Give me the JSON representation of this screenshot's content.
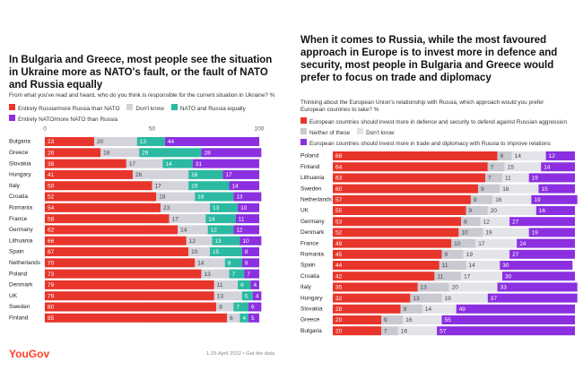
{
  "chart_data": [
    {
      "type": "bar",
      "orientation": "horizontal",
      "stacked": true,
      "title": "In Bulgaria and Greece, most people see the situation in Ukraine more as NATO's fault, or the fault of NATO and Russia equally",
      "subtitle": "From what you've read and heard, who do you think is responsible for the current situation in Ukraine? %",
      "categories": [
        "Bulgaria",
        "Greece",
        "Slovakia",
        "Hungary",
        "Italy",
        "Croatia",
        "Romania",
        "France",
        "Germany",
        "Lithuania",
        "Spain",
        "Netherlands",
        "Poland",
        "Denmark",
        "UK",
        "Sweden",
        "Finland"
      ],
      "series": [
        {
          "name": "Entirely Russia/more Russia than NATO",
          "color": "#e8352b",
          "values": [
            23,
            26,
            38,
            41,
            50,
            52,
            54,
            58,
            62,
            66,
            67,
            70,
            73,
            79,
            79,
            80,
            85
          ]
        },
        {
          "name": "Don't know",
          "color": "#d3d3db",
          "values": [
            20,
            18,
            17,
            26,
            17,
            18,
            23,
            17,
            14,
            12,
            10,
            14,
            13,
            11,
            13,
            8,
            6
          ]
        },
        {
          "name": "NATO and Russia equally",
          "color": "#2bb9a2",
          "values": [
            13,
            29,
            14,
            16,
            19,
            18,
            13,
            14,
            12,
            13,
            15,
            8,
            7,
            6,
            5,
            7,
            4
          ]
        },
        {
          "name": "Entirely NATO/more NATO than Russia",
          "color": "#8b2fe0",
          "values": [
            44,
            28,
            31,
            17,
            14,
            13,
            10,
            11,
            12,
            10,
            8,
            8,
            7,
            4,
            4,
            6,
            5
          ]
        }
      ],
      "xlim": [
        0,
        100
      ],
      "xticks": [
        0,
        50,
        100
      ],
      "grid": true
    },
    {
      "type": "bar",
      "orientation": "horizontal",
      "stacked": true,
      "title": "When it comes to Russia, while the most favoured approach in Europe is to invest more in defence and security, most people in Bulgaria and Greece would prefer to focus on trade and diplomacy",
      "subtitle": "Thinking about the European Union's relationship with Russia, which approach would you prefer European countries to take? %",
      "categories": [
        "Poland",
        "Finland",
        "Lithuania",
        "Sweden",
        "Netherlands",
        "UK",
        "Germany",
        "Denmark",
        "France",
        "Romania",
        "Spain",
        "Croatia",
        "Italy",
        "Hungary",
        "Slovakia",
        "Greece",
        "Bulgaria"
      ],
      "series": [
        {
          "name": "European countries should invest more in defence and security to defend against Russian aggression",
          "color": "#e8352b",
          "values": [
            68,
            64,
            63,
            60,
            57,
            55,
            53,
            52,
            49,
            45,
            44,
            42,
            35,
            32,
            28,
            20,
            20
          ]
        },
        {
          "name": "Neither of these",
          "color": "#c9c9d1",
          "values": [
            6,
            7,
            7,
            9,
            9,
            9,
            8,
            10,
            10,
            9,
            11,
            11,
            13,
            13,
            9,
            9,
            7
          ]
        },
        {
          "name": "Don't know",
          "color": "#e3e3ea",
          "values": [
            14,
            15,
            11,
            16,
            16,
            20,
            12,
            19,
            17,
            19,
            14,
            17,
            20,
            19,
            14,
            16,
            16
          ]
        },
        {
          "name": "European countries should invest more in trade and diplomacy with Russia to improve relations",
          "color": "#8b2fe0",
          "values": [
            12,
            14,
            19,
            15,
            19,
            16,
            27,
            19,
            24,
            27,
            30,
            30,
            33,
            37,
            49,
            55,
            57
          ]
        }
      ],
      "xlim": [
        0,
        100
      ],
      "grid": false
    }
  ],
  "footer": {
    "brand": "YouGov",
    "note": "1-25 April 2022 • Get the data"
  }
}
